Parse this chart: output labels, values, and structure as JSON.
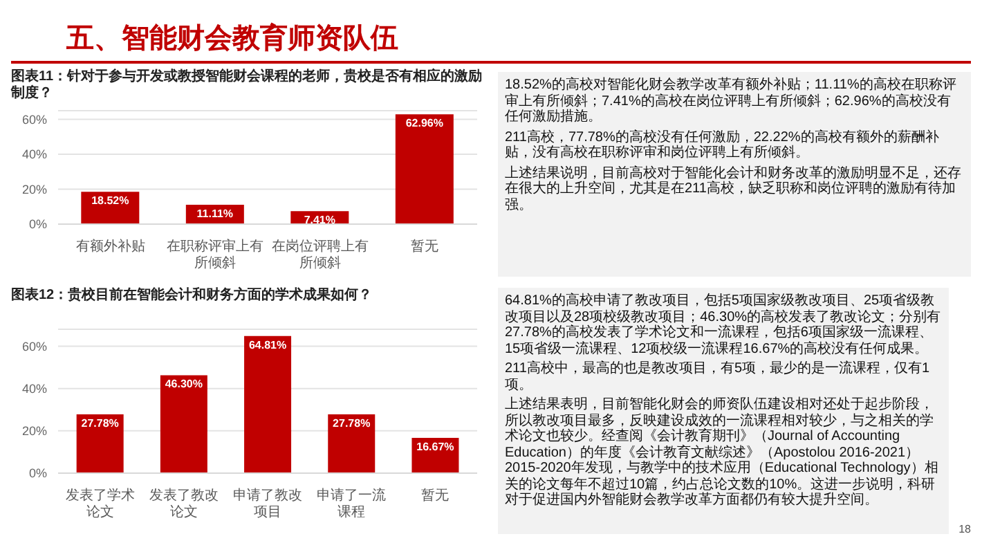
{
  "chart_data": [
    {
      "type": "other",
      "title": "五、智能财会教育师资队伍",
      "annotations": [
        "18"
      ]
    },
    {
      "type": "bar",
      "title": "图表11：针对于参与开发或教授智能财会课程的老师，贵校是否有相应的激励制度？",
      "categories": [
        "有额外补贴",
        "在职称评审上有所倾斜",
        "在岗位评聘上有所倾斜",
        "暂无"
      ],
      "values": [
        18.52,
        11.11,
        7.41,
        62.96
      ],
      "value_labels": [
        "18.52%",
        "11.11%",
        "7.41%",
        "62.96%"
      ],
      "color": "#c00000",
      "ylim": [
        0,
        65
      ],
      "yticks": [
        {
          "value": 0,
          "label": "0%"
        },
        {
          "value": 20,
          "label": "20%"
        },
        {
          "value": 40,
          "label": "40%"
        },
        {
          "value": 60,
          "label": "60%"
        }
      ],
      "grid": "y"
    },
    {
      "type": "other",
      "annotations": [
        "18.52%的高校对智能化财会教学改革有额外补贴；11.11%的高校在职称评审上有所倾斜；7.41%的高校在岗位评聘上有所倾斜；62.96%的高校没有任何激励措施。",
        "211高校，77.78%的高校没有任何激励，22.22%的高校有额外的薪酬补贴，没有高校在职称评审和岗位评聘上有所倾斜。",
        "上述结果说明，目前高校对于智能化会计和财务改革的激励明显不足，还存在很大的上升空间，尤其是在211高校，缺乏职称和岗位评聘的激励有待加强。"
      ]
    },
    {
      "type": "bar",
      "title": "图表12：贵校目前在智能会计和财务方面的学术成果如何？",
      "categories": [
        "发表了学术论文",
        "发表了教改论文",
        "申请了教改项目",
        "申请了一流课程",
        "暂无"
      ],
      "values": [
        27.78,
        46.3,
        64.81,
        27.78,
        16.67
      ],
      "value_labels": [
        "27.78%",
        "46.30%",
        "64.81%",
        "27.78%",
        "16.67%"
      ],
      "color": "#c00000",
      "ylim": [
        0,
        68
      ],
      "yticks": [
        {
          "value": 0,
          "label": "0%"
        },
        {
          "value": 20,
          "label": "20%"
        },
        {
          "value": 40,
          "label": "40%"
        },
        {
          "value": 60,
          "label": "60%"
        }
      ],
      "grid": "y"
    },
    {
      "type": "other",
      "annotations": [
        "64.81%的高校申请了教改项目，包括5项国家级教改项目、25项省级教改项目以及28项校级教改项目；46.30%的高校发表了教改论文；分别有27.78%的高校发表了学术论文和一流课程，包括6项国家级一流课程、15项省级一流课程、12项校级一流课程16.67%的高校没有任何成果。",
        "211高校中，最高的也是教改项目，有5项，最少的是一流课程，仅有1项。",
        "上述结果表明，目前智能化财会的师资队伍建设相对还处于起步阶段，所以教改项目最多，反映建设成效的一流课程相对较少，与之相关的学术论文也较少。经查阅《会计教育期刊》（Journal of Accounting Education）的年度《会计教育文献综述》（Apostolou 2016-2021）2015-2020年发现，与教学中的技术应用（Educational Technology）相关的论文每年不超过10篇，约占总论文数的10%。这进一步说明，科研对于促进国内外智能财会教学改革方面都仍有较大提升空间。"
      ]
    }
  ]
}
